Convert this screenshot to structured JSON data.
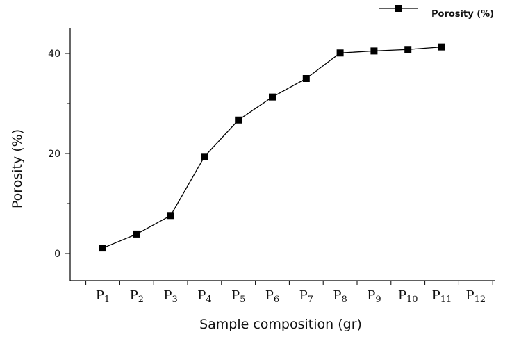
{
  "chart_data": {
    "type": "line",
    "categories": [
      {
        "base": "P",
        "sub": "1"
      },
      {
        "base": "P",
        "sub": "2"
      },
      {
        "base": "P",
        "sub": "3"
      },
      {
        "base": "P",
        "sub": "4"
      },
      {
        "base": "P",
        "sub": "5"
      },
      {
        "base": "P",
        "sub": "6"
      },
      {
        "base": "P",
        "sub": "7"
      },
      {
        "base": "P",
        "sub": "8"
      },
      {
        "base": "P",
        "sub": "9"
      },
      {
        "base": "P",
        "sub": "10"
      },
      {
        "base": "P",
        "sub": "11"
      },
      {
        "base": "P",
        "sub": "12"
      }
    ],
    "series": [
      {
        "name": "Porosity  (%)",
        "values": [
          1.1,
          3.9,
          7.6,
          19.4,
          26.7,
          31.3,
          35.0,
          40.1,
          40.5,
          40.8,
          41.3,
          null
        ],
        "marker": "square",
        "color": "#000000"
      }
    ],
    "xlabel": "Sample composition (gr)",
    "ylabel": "Porosity  (%)",
    "ylim": [
      -5,
      45
    ],
    "yticks": [
      "0",
      "20",
      "40"
    ],
    "ytick_values": [
      0,
      20,
      40
    ],
    "grid": false,
    "legend_position": "top-right"
  }
}
